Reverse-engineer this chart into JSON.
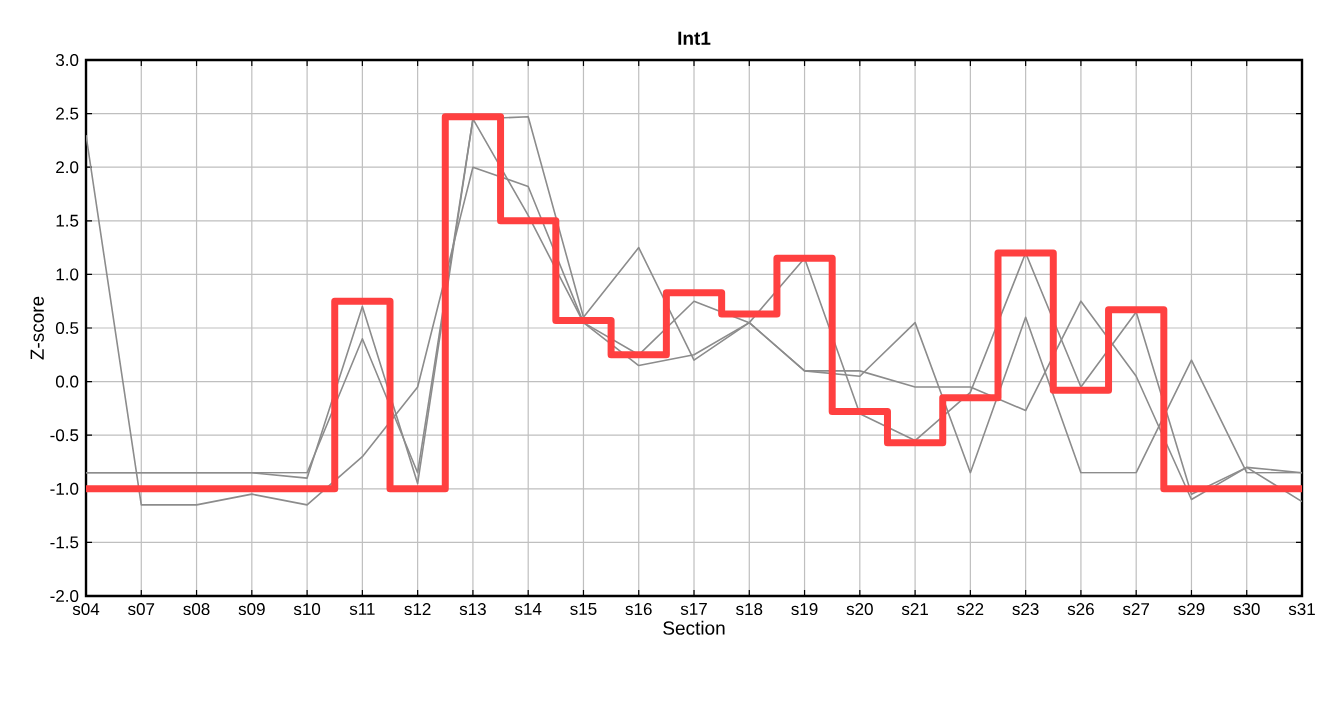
{
  "chart_data": {
    "type": "line",
    "title": "Int1",
    "xlabel": "Section",
    "ylabel": "Z-score",
    "categories": [
      "s04",
      "s07",
      "s08",
      "s09",
      "s10",
      "s11",
      "s12",
      "s13",
      "s14",
      "s15",
      "s16",
      "s17",
      "s18",
      "s19",
      "s20",
      "s21",
      "s22",
      "s23",
      "s26",
      "s27",
      "s29",
      "s30",
      "s31"
    ],
    "ylim": [
      -2,
      3
    ],
    "yticks": [
      {
        "value": -2,
        "label": "-2.0"
      },
      {
        "value": -1.5,
        "label": "-1.5"
      },
      {
        "value": -1,
        "label": "-1.0"
      },
      {
        "value": -0.5,
        "label": "-0.5"
      },
      {
        "value": 0,
        "label": "0.0"
      },
      {
        "value": 0.5,
        "label": "0.5"
      },
      {
        "value": 1,
        "label": "1.0"
      },
      {
        "value": 1.5,
        "label": "1.5"
      },
      {
        "value": 2,
        "label": "2.0"
      },
      {
        "value": 2.5,
        "label": "2.5"
      },
      {
        "value": 3,
        "label": "3.0"
      }
    ],
    "grid": true,
    "series": [
      {
        "color": "#8c8c8c",
        "values": [
          2.3,
          -1.15,
          -1.15,
          -1.05,
          -1.15,
          -0.7,
          -0.05,
          2.0,
          1.82,
          0.55,
          0.15,
          0.25,
          0.55,
          0.1,
          0.1,
          -0.05,
          -0.05,
          -0.27,
          0.75,
          0.05,
          -1.1,
          -0.8,
          -1.12
        ]
      },
      {
        "color": "#8c8c8c",
        "values": [
          -0.85,
          -0.85,
          -0.85,
          -0.85,
          -0.85,
          0.4,
          -0.85,
          2.45,
          2.47,
          0.6,
          1.25,
          0.2,
          0.55,
          0.1,
          0.05,
          0.55,
          -0.85,
          0.6,
          -0.85,
          -0.85,
          0.2,
          -0.85,
          -0.85
        ]
      },
      {
        "color": "#8c8c8c",
        "values": [
          -0.85,
          -0.85,
          -0.85,
          -0.85,
          -0.9,
          0.7,
          -0.95,
          2.45,
          1.55,
          0.55,
          0.25,
          0.75,
          0.55,
          1.15,
          -0.3,
          -0.55,
          -0.1,
          1.2,
          -0.05,
          0.65,
          -1.05,
          -0.8,
          -0.85
        ]
      },
      {
        "type": "step",
        "color": "#ff4040",
        "values": [
          -1,
          -1,
          -1,
          -1,
          -1,
          0.75,
          -1,
          2.47,
          1.5,
          0.57,
          0.25,
          0.83,
          0.63,
          1.15,
          -0.28,
          -0.57,
          -0.15,
          1.2,
          -0.08,
          0.67,
          -1,
          -1,
          -1
        ]
      }
    ]
  }
}
